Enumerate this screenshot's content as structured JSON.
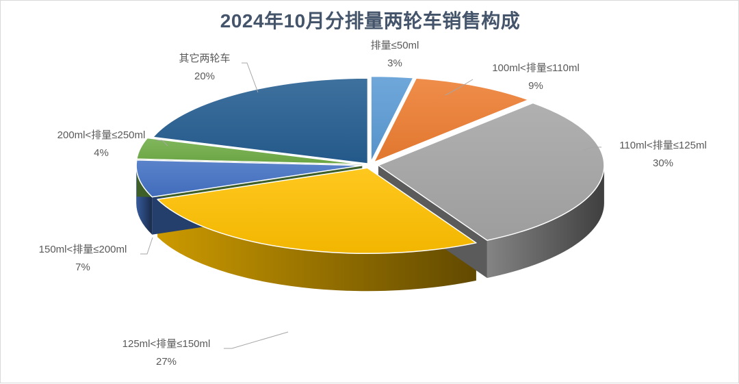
{
  "chart_data": {
    "type": "pie",
    "title": "2024年10月分排量两轮车销售构成",
    "categories": [
      "排量≤50ml",
      "100ml<排量≤110ml",
      "110ml<排量≤125ml",
      "125ml<排量≤150ml",
      "150ml<排量≤200ml",
      "200ml<排量≤250ml",
      "其它两轮车"
    ],
    "values": [
      3,
      9,
      30,
      27,
      7,
      4,
      20
    ],
    "value_labels": [
      "3%",
      "9%",
      "30%",
      "27%",
      "7%",
      "4%",
      "20%"
    ],
    "colors": [
      "#5b9bd5",
      "#ed7d31",
      "#a5a5a5",
      "#ffc000",
      "#4472c4",
      "#70ad47",
      "#255e91"
    ],
    "style": "3d-exploded",
    "legend": "none",
    "grid": false
  }
}
